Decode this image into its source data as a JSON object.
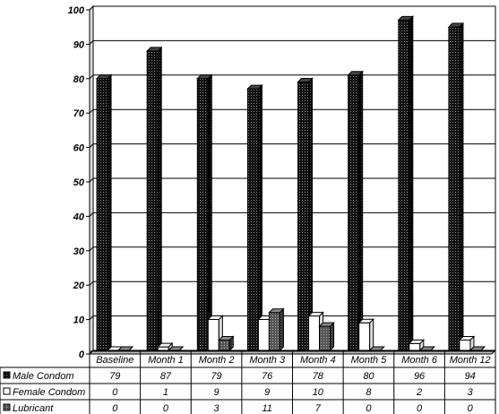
{
  "chart_data": {
    "type": "bar",
    "title": "",
    "xlabel": "",
    "ylabel": "",
    "ylim": [
      0,
      100
    ],
    "yticks": [
      0,
      10,
      20,
      30,
      40,
      50,
      60,
      70,
      80,
      90,
      100
    ],
    "grid": true,
    "legend_placement": "data-table-left",
    "categories": [
      "Baseline",
      "Month 1",
      "Month 2",
      "Month 3",
      "Month 4",
      "Month 5",
      "Month 6",
      "Month 12"
    ],
    "series": [
      {
        "name": "Male Condom",
        "values": [
          79,
          87,
          79,
          76,
          78,
          80,
          96,
          94
        ],
        "color": "#1a1a1a",
        "pattern": "dark-dots"
      },
      {
        "name": "Female Condom",
        "values": [
          0,
          1,
          9,
          9,
          10,
          8,
          2,
          3
        ],
        "color": "#ffffff",
        "pattern": "none"
      },
      {
        "name": "Lubricant",
        "values": [
          0,
          0,
          3,
          11,
          7,
          0,
          0,
          0
        ],
        "color": "#555555",
        "pattern": "grey-dots"
      }
    ]
  }
}
